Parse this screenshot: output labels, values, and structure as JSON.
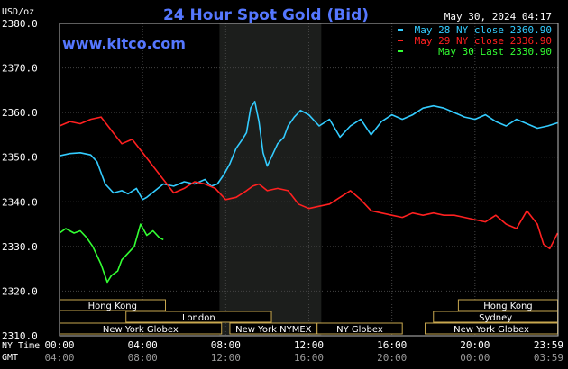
{
  "chart_data": {
    "type": "line",
    "title": "24 Hour Spot Gold (Bid)",
    "date_stamp": "May 30, 2024 04:17",
    "watermark": "www.kitco.com",
    "y_unit_label": "USD/oz",
    "ylim": [
      2310,
      2380
    ],
    "y_ticks": [
      "2380.0",
      "2370.0",
      "2360.0",
      "2350.0",
      "2340.0",
      "2330.0",
      "2320.0",
      "2310.0"
    ],
    "y_tick_values": [
      2380,
      2370,
      2360,
      2350,
      2340,
      2330,
      2320,
      2310
    ],
    "x_range_hours": [
      0,
      24
    ],
    "x_row1_label": "NY Time",
    "x_row2_label": "GMT",
    "x_ticks_ny": [
      "00:00",
      "04:00",
      "08:00",
      "12:00",
      "16:00",
      "20:00",
      "23:59"
    ],
    "x_ticks_gmt": [
      "04:00",
      "08:00",
      "12:00",
      "16:00",
      "20:00",
      "00:00",
      "03:59"
    ],
    "x_tick_hours": [
      0,
      4,
      8,
      12,
      16,
      20,
      23.98
    ],
    "highlight_hours": [
      7.7,
      12.6
    ],
    "legend": [
      {
        "label": "May 28 NY close 2360.90",
        "color": "#33ccff"
      },
      {
        "label": "May 29 NY close 2336.90",
        "color": "#ff2020"
      },
      {
        "label": "May 30 Last 2330.90",
        "color": "#33ff33"
      }
    ],
    "sessions": [
      {
        "label": "Hong Kong",
        "start": 0,
        "end": 5.1,
        "row": 0
      },
      {
        "label": "London",
        "start": 3.2,
        "end": 10.2,
        "row": 1
      },
      {
        "label": "New York Globex",
        "start": 0,
        "end": 7.8,
        "row": 2
      },
      {
        "label": "New York NYMEX",
        "start": 8.2,
        "end": 12.4,
        "row": 2
      },
      {
        "label": "NY Globex",
        "start": 12.4,
        "end": 16.5,
        "row": 2
      },
      {
        "label": "Hong Kong",
        "start": 19.2,
        "end": 23.98,
        "row": 0
      },
      {
        "label": "Sydney",
        "start": 18.0,
        "end": 23.98,
        "row": 1
      },
      {
        "label": "New York Globex",
        "start": 17.6,
        "end": 23.98,
        "row": 2
      }
    ],
    "series": [
      {
        "name": "May 28",
        "color": "#33ccff",
        "x": [
          0,
          0.5,
          1,
          1.5,
          1.8,
          2.2,
          2.6,
          3.0,
          3.3,
          3.7,
          4.0,
          4.2,
          4.6,
          5.0,
          5.5,
          6.0,
          6.5,
          7.0,
          7.3,
          7.6,
          7.9,
          8.2,
          8.5,
          8.8,
          9.0,
          9.2,
          9.4,
          9.6,
          9.8,
          10.0,
          10.2,
          10.5,
          10.8,
          11.0,
          11.3,
          11.6,
          12.0,
          12.5,
          13.0,
          13.5,
          14.0,
          14.5,
          15.0,
          15.5,
          16.0,
          16.5,
          17.0,
          17.5,
          18.0,
          18.5,
          19.0,
          19.5,
          20.0,
          20.5,
          21.0,
          21.5,
          22.0,
          22.5,
          23.0,
          23.5,
          23.98
        ],
        "values": [
          2350.3,
          2350.8,
          2351.0,
          2350.5,
          2349.0,
          2344.0,
          2342.0,
          2342.5,
          2341.8,
          2343.0,
          2340.5,
          2341.0,
          2342.5,
          2344.0,
          2343.5,
          2344.5,
          2344.0,
          2345.0,
          2343.5,
          2344.0,
          2346.0,
          2348.5,
          2352.0,
          2354.0,
          2355.5,
          2361.0,
          2362.5,
          2358.0,
          2351.0,
          2348.0,
          2350.0,
          2353.0,
          2354.5,
          2357.0,
          2359.0,
          2360.5,
          2359.5,
          2357.0,
          2358.5,
          2354.5,
          2357.0,
          2358.5,
          2355.0,
          2358.0,
          2359.5,
          2358.5,
          2359.5,
          2361.0,
          2361.5,
          2361.0,
          2360.0,
          2359.0,
          2358.5,
          2359.5,
          2358.0,
          2357.0,
          2358.5,
          2357.5,
          2356.5,
          2357.0,
          2357.7
        ]
      },
      {
        "name": "May 29",
        "color": "#ff2020",
        "x": [
          0,
          0.5,
          1,
          1.5,
          2.0,
          2.5,
          3.0,
          3.5,
          4.0,
          4.5,
          5.0,
          5.5,
          6.0,
          6.5,
          7.0,
          7.5,
          8.0,
          8.5,
          9.0,
          9.3,
          9.6,
          10.0,
          10.5,
          11.0,
          11.5,
          12.0,
          12.5,
          13.0,
          13.5,
          14.0,
          14.5,
          15.0,
          15.5,
          16.0,
          16.5,
          17.0,
          17.5,
          18.0,
          18.5,
          19.0,
          19.5,
          20.0,
          20.5,
          21.0,
          21.5,
          22.0,
          22.5,
          23.0,
          23.3,
          23.6,
          23.98
        ],
        "values": [
          2357.0,
          2358.0,
          2357.5,
          2358.5,
          2359.0,
          2356.0,
          2353.0,
          2354.0,
          2351.0,
          2348.0,
          2345.0,
          2342.0,
          2343.0,
          2344.5,
          2344.0,
          2343.0,
          2340.5,
          2341.0,
          2342.5,
          2343.5,
          2344.0,
          2342.5,
          2343.0,
          2342.5,
          2339.5,
          2338.5,
          2339.0,
          2339.5,
          2341.0,
          2342.5,
          2340.5,
          2338.0,
          2337.5,
          2337.0,
          2336.5,
          2337.5,
          2337.0,
          2337.5,
          2337.0,
          2337.0,
          2336.5,
          2336.0,
          2335.5,
          2337.0,
          2335.0,
          2334.0,
          2338.0,
          2335.0,
          2330.5,
          2329.5,
          2333.0
        ]
      },
      {
        "name": "May 30",
        "color": "#33ff33",
        "x": [
          0,
          0.3,
          0.7,
          1.0,
          1.3,
          1.6,
          2.0,
          2.3,
          2.5,
          2.8,
          3.0,
          3.3,
          3.6,
          3.9,
          4.2,
          4.5,
          4.8,
          5.0
        ],
        "values": [
          2333.0,
          2334.0,
          2333.0,
          2333.5,
          2332.0,
          2330.0,
          2326.0,
          2322.0,
          2323.5,
          2324.5,
          2327.0,
          2328.5,
          2330.0,
          2335.0,
          2332.5,
          2333.5,
          2332.0,
          2331.5
        ]
      }
    ]
  }
}
